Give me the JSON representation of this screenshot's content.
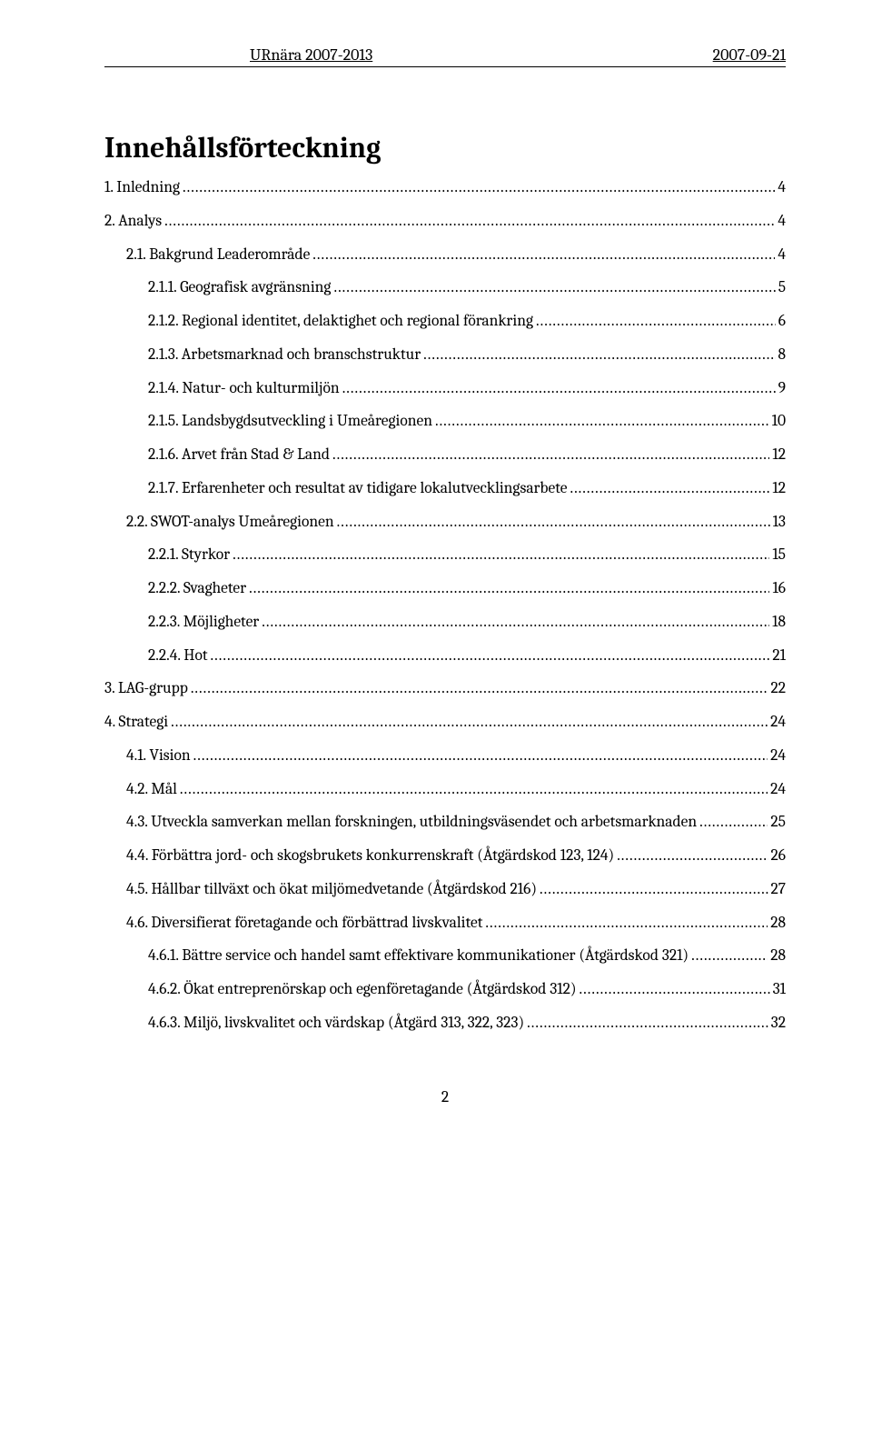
{
  "header": {
    "left": "URnära 2007-2013",
    "right": "2007-09-21"
  },
  "title": "Innehållsförteckning",
  "toc": [
    {
      "level": 0,
      "label": "1. Inledning",
      "page": "4"
    },
    {
      "level": 0,
      "label": "2. Analys",
      "page": "4"
    },
    {
      "level": 1,
      "label": "2.1. Bakgrund Leaderområde",
      "page": "4"
    },
    {
      "level": 2,
      "label": "2.1.1. Geografisk avgränsning",
      "page": "5"
    },
    {
      "level": 2,
      "label": "2.1.2. Regional identitet, delaktighet och regional förankring",
      "page": "6"
    },
    {
      "level": 2,
      "label": "2.1.3. Arbetsmarknad och branschstruktur",
      "page": "8"
    },
    {
      "level": 2,
      "label": "2.1.4. Natur- och kulturmiljön",
      "page": "9"
    },
    {
      "level": 2,
      "label": "2.1.5. Landsbygdsutveckling i Umeåregionen",
      "page": "10"
    },
    {
      "level": 2,
      "label": "2.1.6. Arvet från Stad & Land",
      "page": "12"
    },
    {
      "level": 2,
      "label": "2.1.7. Erfarenheter och resultat av tidigare lokalutvecklingsarbete",
      "page": "12"
    },
    {
      "level": 1,
      "label": "2.2. SWOT-analys Umeåregionen",
      "page": "13"
    },
    {
      "level": 2,
      "label": "2.2.1. Styrkor",
      "page": "15"
    },
    {
      "level": 2,
      "label": "2.2.2. Svagheter",
      "page": "16"
    },
    {
      "level": 2,
      "label": "2.2.3. Möjligheter",
      "page": "18"
    },
    {
      "level": 2,
      "label": "2.2.4. Hot",
      "page": "21"
    },
    {
      "level": 0,
      "label": "3. LAG-grupp",
      "page": "22"
    },
    {
      "level": 0,
      "label": "4. Strategi",
      "page": "24"
    },
    {
      "level": 1,
      "label": "4.1. Vision",
      "page": "24"
    },
    {
      "level": 1,
      "label": "4.2. Mål",
      "page": "24"
    },
    {
      "level": 1,
      "label": "4.3. Utveckla samverkan mellan forskningen, utbildningsväsendet och arbetsmarknaden",
      "page": "25"
    },
    {
      "level": 1,
      "label": "4.4. Förbättra jord- och skogsbrukets konkurrenskraft (Åtgärdskod 123, 124)",
      "page": "26"
    },
    {
      "level": 1,
      "label": "4.5. Hållbar tillväxt och ökat miljömedvetande (Åtgärdskod 216)",
      "page": "27"
    },
    {
      "level": 1,
      "label": "4.6. Diversifierat företagande och förbättrad livskvalitet",
      "page": "28"
    },
    {
      "level": 2,
      "label": "4.6.1. Bättre service och handel samt effektivare kommunikationer (Åtgärdskod 321)",
      "page": "28"
    },
    {
      "level": 2,
      "label": "4.6.2. Ökat entreprenörskap och egenföretagande (Åtgärdskod 312)",
      "page": "31"
    },
    {
      "level": 2,
      "label": "4.6.3. Miljö, livskvalitet och värdskap (Åtgärd 313, 322, 323)",
      "page": "32"
    }
  ],
  "footer": {
    "page_number": "2"
  }
}
